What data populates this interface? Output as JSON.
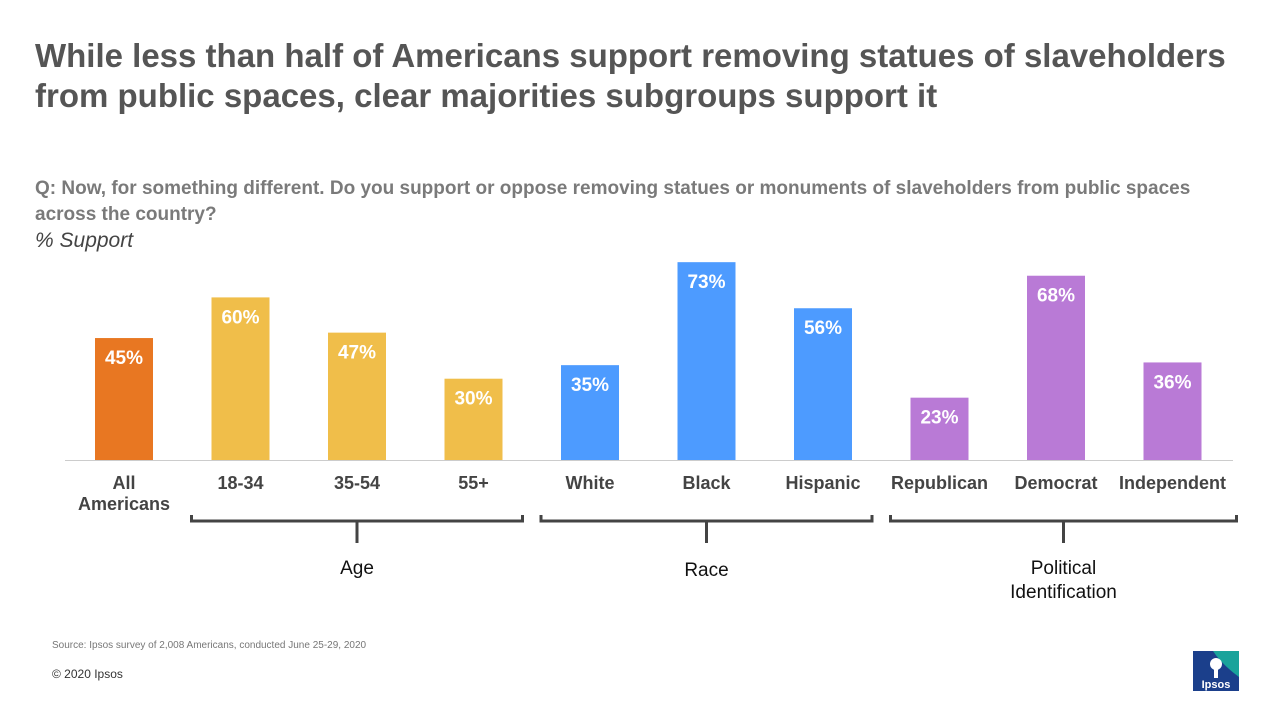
{
  "title": "While less than half of Americans support removing statues of slaveholders from public spaces, clear majorities subgroups support it",
  "question": "Q: Now, for something different. Do you support or oppose removing statues or monuments of slaveholders from public spaces across the country?",
  "unit_label": "% Support",
  "source": "Source: Ipsos survey of 2,008 Americans, conducted June 25-29, 2020",
  "copyright": "© 2020 Ipsos",
  "logo_text": "Ipsos",
  "colors": {
    "total": "#E87722",
    "age": "#F0BE4A",
    "race": "#4D9BFF",
    "political": "#B97AD6",
    "bracket": "#444444",
    "axis": "#cccccc"
  },
  "chart_data": {
    "type": "bar",
    "title": "% Support",
    "ylim": [
      0,
      80
    ],
    "categories": [
      "All Americans",
      "18-34",
      "35-54",
      "55+",
      "White",
      "Black",
      "Hispanic",
      "Republican",
      "Democrat",
      "Independent"
    ],
    "category_lines": [
      [
        "All",
        "Americans"
      ],
      [
        "18-34"
      ],
      [
        "35-54"
      ],
      [
        "55+"
      ],
      [
        "White"
      ],
      [
        "Black"
      ],
      [
        "Hispanic"
      ],
      [
        "Republican"
      ],
      [
        "Democrat"
      ],
      [
        "Independent"
      ]
    ],
    "values": [
      45,
      60,
      47,
      30,
      35,
      73,
      56,
      23,
      68,
      36
    ],
    "value_labels": [
      "45%",
      "60%",
      "47%",
      "30%",
      "35%",
      "73%",
      "56%",
      "23%",
      "68%",
      "36%"
    ],
    "groups": [
      "total",
      "age",
      "age",
      "age",
      "race",
      "race",
      "race",
      "political",
      "political",
      "political"
    ],
    "group_brackets": [
      {
        "key": "age",
        "label_lines": [
          "Age"
        ]
      },
      {
        "key": "race",
        "label_lines": [
          "Race"
        ]
      },
      {
        "key": "political",
        "label_lines": [
          "Political",
          "Identification"
        ]
      }
    ]
  }
}
